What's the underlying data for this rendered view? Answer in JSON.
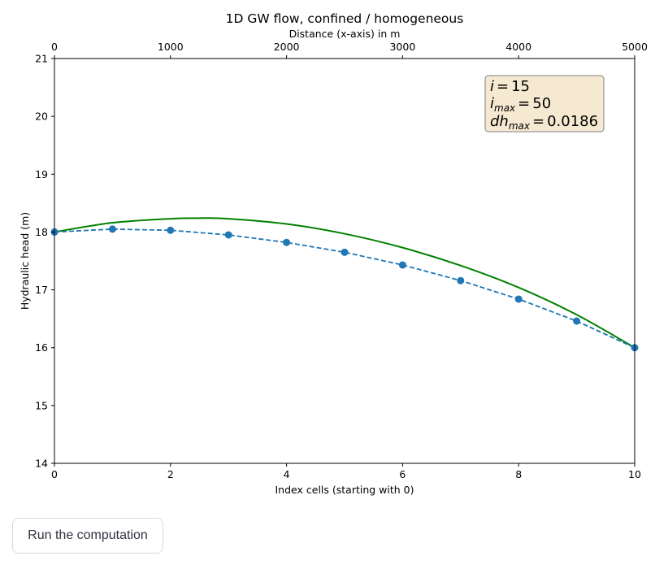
{
  "chart_data": {
    "type": "line",
    "title": "1D GW flow, confined / homogeneous",
    "top_xlabel": "Distance (x-axis) in m",
    "xlabel": "Index cells (starting with 0)",
    "ylabel": "Hydraulic head (m)",
    "xlim": [
      0,
      10
    ],
    "ylim": [
      14,
      21
    ],
    "top_xlim": [
      0,
      5000
    ],
    "x_ticks": [
      "0",
      "2",
      "4",
      "6",
      "8",
      "10"
    ],
    "top_x_ticks": [
      "0",
      "1000",
      "2000",
      "3000",
      "4000",
      "5000"
    ],
    "y_ticks": [
      "14",
      "15",
      "16",
      "17",
      "18",
      "19",
      "20",
      "21"
    ],
    "grid": false,
    "series": [
      {
        "style": "solid-line",
        "color": "#008000",
        "x": [
          0,
          1,
          2,
          2.5,
          3,
          4,
          5,
          6,
          7,
          8,
          9,
          10
        ],
        "values": [
          18.0,
          18.16,
          18.23,
          18.24,
          18.23,
          18.14,
          17.97,
          17.73,
          17.42,
          17.04,
          16.57,
          16.0
        ]
      },
      {
        "style": "dashed-line-with-markers",
        "color": "#1f77b4",
        "x": [
          0,
          1,
          2,
          3,
          4,
          5,
          6,
          7,
          8,
          9,
          10
        ],
        "values": [
          18.0,
          18.05,
          18.03,
          17.95,
          17.82,
          17.65,
          17.43,
          17.16,
          16.84,
          16.46,
          16.0
        ]
      }
    ],
    "annotation": {
      "lines": [
        {
          "var": "i",
          "sub": "",
          "value": "15"
        },
        {
          "var": "i",
          "sub": "max",
          "value": "50"
        },
        {
          "var": "dh",
          "sub": "max",
          "value": "0.0186"
        }
      ],
      "placement": "top-right",
      "box_color": "#f6e9d1"
    }
  },
  "controls": {
    "run_button_label": "Run the computation"
  }
}
